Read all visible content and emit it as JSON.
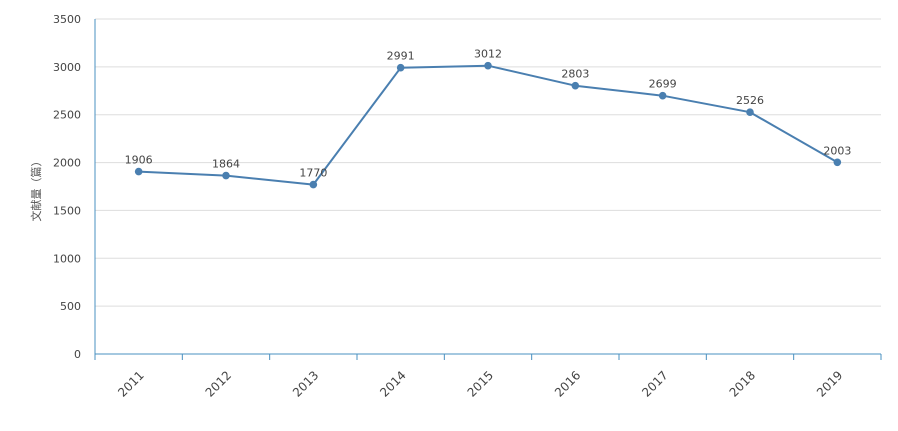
{
  "chart_data": {
    "type": "line",
    "categories": [
      "2011",
      "2012",
      "2013",
      "2014",
      "2015",
      "2016",
      "2017",
      "2018",
      "2019"
    ],
    "series": [
      {
        "values": [
          1906,
          1864,
          1770,
          2991,
          3012,
          2803,
          2699,
          2526,
          2003
        ]
      }
    ],
    "xlabel": "",
    "ylabel": "文献量（篇）",
    "ylim": [
      0,
      3500
    ],
    "yticks": [
      0,
      500,
      1000,
      1500,
      2000,
      2500,
      3000,
      3500
    ],
    "grid": true,
    "data_labels": true,
    "colors": {
      "line": "#4a7fb0",
      "axis": "#4a90c0",
      "grid": "#dddddd"
    }
  }
}
